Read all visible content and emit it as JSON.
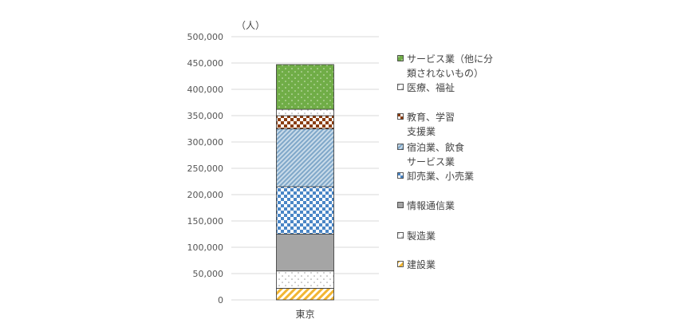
{
  "chart_data": {
    "type": "bar",
    "stacked": true,
    "unit_label": "（人）",
    "categories": [
      "東京"
    ],
    "ylim": [
      0,
      500000
    ],
    "yticks": [
      0,
      50000,
      100000,
      150000,
      200000,
      250000,
      300000,
      350000,
      400000,
      450000,
      500000
    ],
    "ytick_labels": [
      "0",
      "50,000",
      "100,000",
      "150,000",
      "200,000",
      "250,000",
      "300,000",
      "350,000",
      "400,000",
      "450,000",
      "500,000"
    ],
    "grid": true,
    "legend_position": "right",
    "series": [
      {
        "name": "建設業",
        "values": [
          22000
        ],
        "color": "#f2b632",
        "pattern": "diagonal"
      },
      {
        "name": "製造業",
        "values": [
          33000
        ],
        "color": "#9a9a9a",
        "pattern": "dots"
      },
      {
        "name": "情報通信業",
        "values": [
          70000
        ],
        "color": "#a5a5a5",
        "pattern": "solid"
      },
      {
        "name": "卸売業、小売業",
        "values": [
          90000
        ],
        "color": "#4a86c6",
        "pattern": "checker"
      },
      {
        "name": "宿泊業、飲食サービス業",
        "values": [
          110000
        ],
        "color": "#7fa7c9",
        "pattern": "dense-diagonal"
      },
      {
        "name": "教育、学習支援業",
        "values": [
          25000
        ],
        "color": "#8b3d10",
        "pattern": "checker"
      },
      {
        "name": "医療、福祉",
        "values": [
          12000
        ],
        "color": "#9a9a9a",
        "pattern": "dots"
      },
      {
        "name": "サービス業（他に分類されないもの）",
        "values": [
          85000
        ],
        "color": "#70ad47",
        "pattern": "dots-on-fill"
      }
    ]
  },
  "legend": [
    {
      "lines": [
        "サービス業（他に分",
        "類されないもの）"
      ]
    },
    {
      "lines": [
        "医療、福祉"
      ]
    },
    {
      "lines": [
        "教育、学習",
        "支援業"
      ]
    },
    {
      "lines": [
        "宿泊業、飲食",
        "サービス業"
      ]
    },
    {
      "lines": [
        "卸売業、小売業"
      ]
    },
    {
      "lines": [
        "情報通信業"
      ]
    },
    {
      "lines": [
        "製造業"
      ]
    },
    {
      "lines": [
        "建設業"
      ]
    }
  ]
}
